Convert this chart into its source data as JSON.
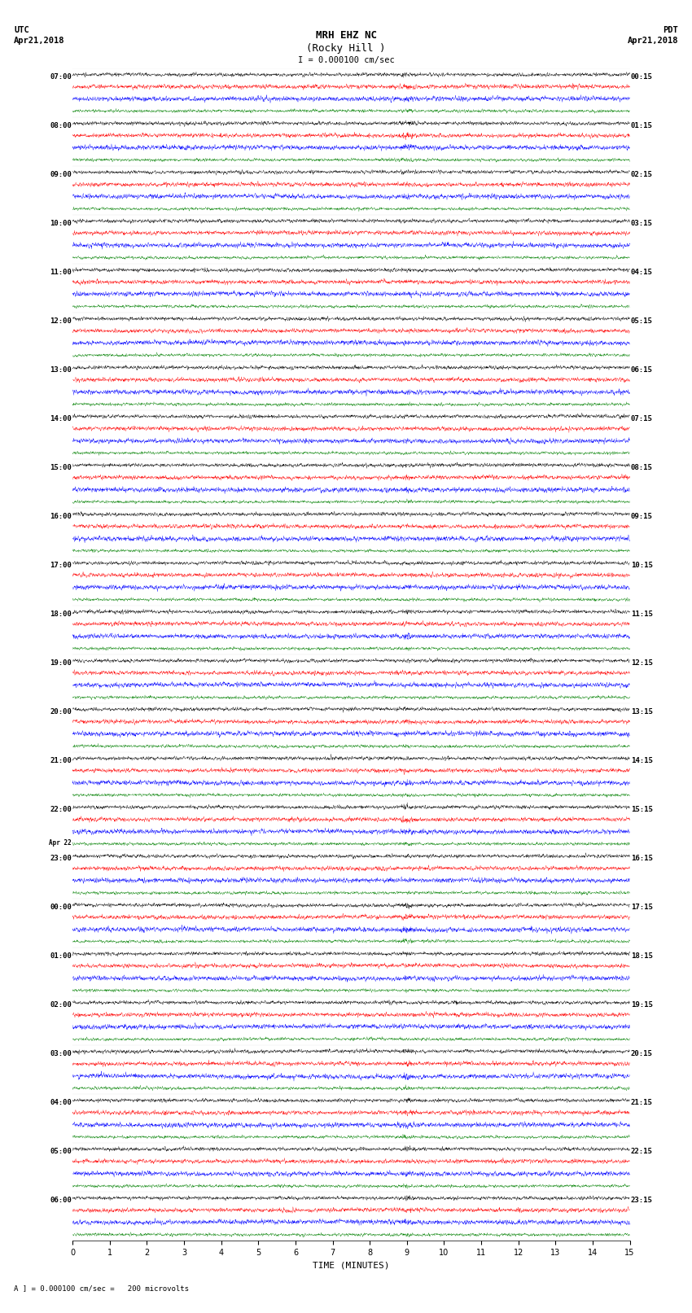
{
  "title_line1": "MRH EHZ NC",
  "title_line2": "(Rocky Hill )",
  "title_scale": "I = 0.000100 cm/sec",
  "label_utc": "UTC",
  "label_pdt": "PDT",
  "label_date_left": "Apr21,2018",
  "label_date_right": "Apr21,2018",
  "label_apr22": "Apr 22",
  "xlabel": "TIME (MINUTES)",
  "scale_label": "= 0.000100 cm/sec =   200 microvolts",
  "scale_mark": "A",
  "xlim": [
    0,
    15
  ],
  "xticks": [
    0,
    1,
    2,
    3,
    4,
    5,
    6,
    7,
    8,
    9,
    10,
    11,
    12,
    13,
    14,
    15
  ],
  "colors": [
    "black",
    "red",
    "blue",
    "green"
  ],
  "n_hours": 24,
  "traces_per_hour": 4,
  "fig_width": 8.5,
  "fig_height": 16.13,
  "left_labels_hours": [
    "07:00",
    "08:00",
    "09:00",
    "10:00",
    "11:00",
    "12:00",
    "13:00",
    "14:00",
    "15:00",
    "16:00",
    "17:00",
    "18:00",
    "19:00",
    "20:00",
    "21:00",
    "22:00",
    "23:00",
    "00:00",
    "01:00",
    "02:00",
    "03:00",
    "04:00",
    "05:00",
    "06:00"
  ],
  "right_labels_hours": [
    "00:15",
    "01:15",
    "02:15",
    "03:15",
    "04:15",
    "05:15",
    "06:15",
    "07:15",
    "08:15",
    "09:15",
    "10:15",
    "11:15",
    "12:15",
    "13:15",
    "14:15",
    "15:15",
    "16:15",
    "17:15",
    "18:15",
    "19:15",
    "20:15",
    "21:15",
    "22:15",
    "23:15"
  ],
  "apr22_row": 16,
  "noise_seed": 42,
  "bg_color": "white",
  "n_points": 3000,
  "base_noise_std": 0.018,
  "high_freq_std": 0.022
}
